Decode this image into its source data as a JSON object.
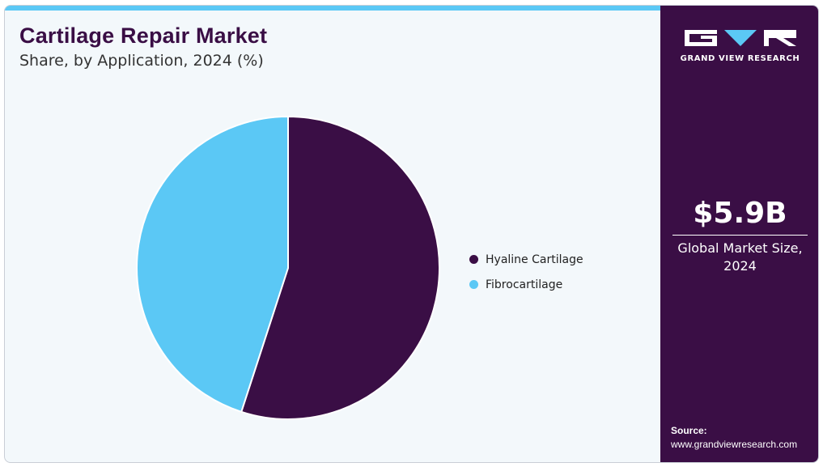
{
  "header": {
    "title": "Cartilage Repair Market",
    "subtitle": "Share, by Application, 2024 (%)"
  },
  "chart_data": {
    "type": "pie",
    "title": "Cartilage Repair Market",
    "subtitle": "Share, by Application, 2024 (%)",
    "categories": [
      "Hyaline Cartilage",
      "Fibrocartilage"
    ],
    "values": [
      55,
      45
    ],
    "colors": [
      "#3a0e45",
      "#5bc8f5"
    ],
    "legend_position": "right",
    "start_angle": "12 o'clock, clockwise"
  },
  "sidebar": {
    "logo_text": "GRAND VIEW RESEARCH",
    "logo_icon": "gvr-logo-icon",
    "market_value": "$5.9B",
    "market_label": "Global Market Size, 2024",
    "source_label": "Source:",
    "source_url": "www.grandviewresearch.com"
  },
  "colors": {
    "brand_dark": "#3a0e45",
    "accent": "#5bc8f5",
    "background": "#f3f8fb"
  }
}
